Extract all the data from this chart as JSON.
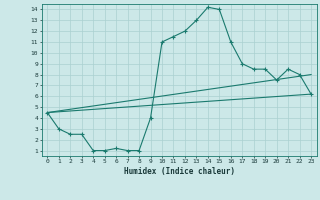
{
  "title": "",
  "xlabel": "Humidex (Indice chaleur)",
  "bg_color": "#cce8e8",
  "grid_color": "#aad0d0",
  "line_color": "#1a7a6e",
  "xlim": [
    -0.5,
    23.5
  ],
  "ylim": [
    0.5,
    14.5
  ],
  "xticks": [
    0,
    1,
    2,
    3,
    4,
    5,
    6,
    7,
    8,
    9,
    10,
    11,
    12,
    13,
    14,
    15,
    16,
    17,
    18,
    19,
    20,
    21,
    22,
    23
  ],
  "yticks": [
    1,
    2,
    3,
    4,
    5,
    6,
    7,
    8,
    9,
    10,
    11,
    12,
    13,
    14
  ],
  "line1_x": [
    0,
    1,
    2,
    3,
    4,
    5,
    6,
    7,
    8,
    9,
    10,
    11,
    12,
    13,
    14,
    15,
    16,
    17,
    18,
    19,
    20,
    21,
    22,
    23
  ],
  "line1_y": [
    4.5,
    3.0,
    2.5,
    2.5,
    1.0,
    1.0,
    1.2,
    1.0,
    1.0,
    4.0,
    11.0,
    11.5,
    12.0,
    13.0,
    14.2,
    14.0,
    11.0,
    9.0,
    8.5,
    8.5,
    7.5,
    8.5,
    8.0,
    6.2
  ],
  "line2_x": [
    0,
    23
  ],
  "line2_y": [
    4.5,
    8.0
  ],
  "line3_x": [
    0,
    23
  ],
  "line3_y": [
    4.5,
    6.2
  ]
}
